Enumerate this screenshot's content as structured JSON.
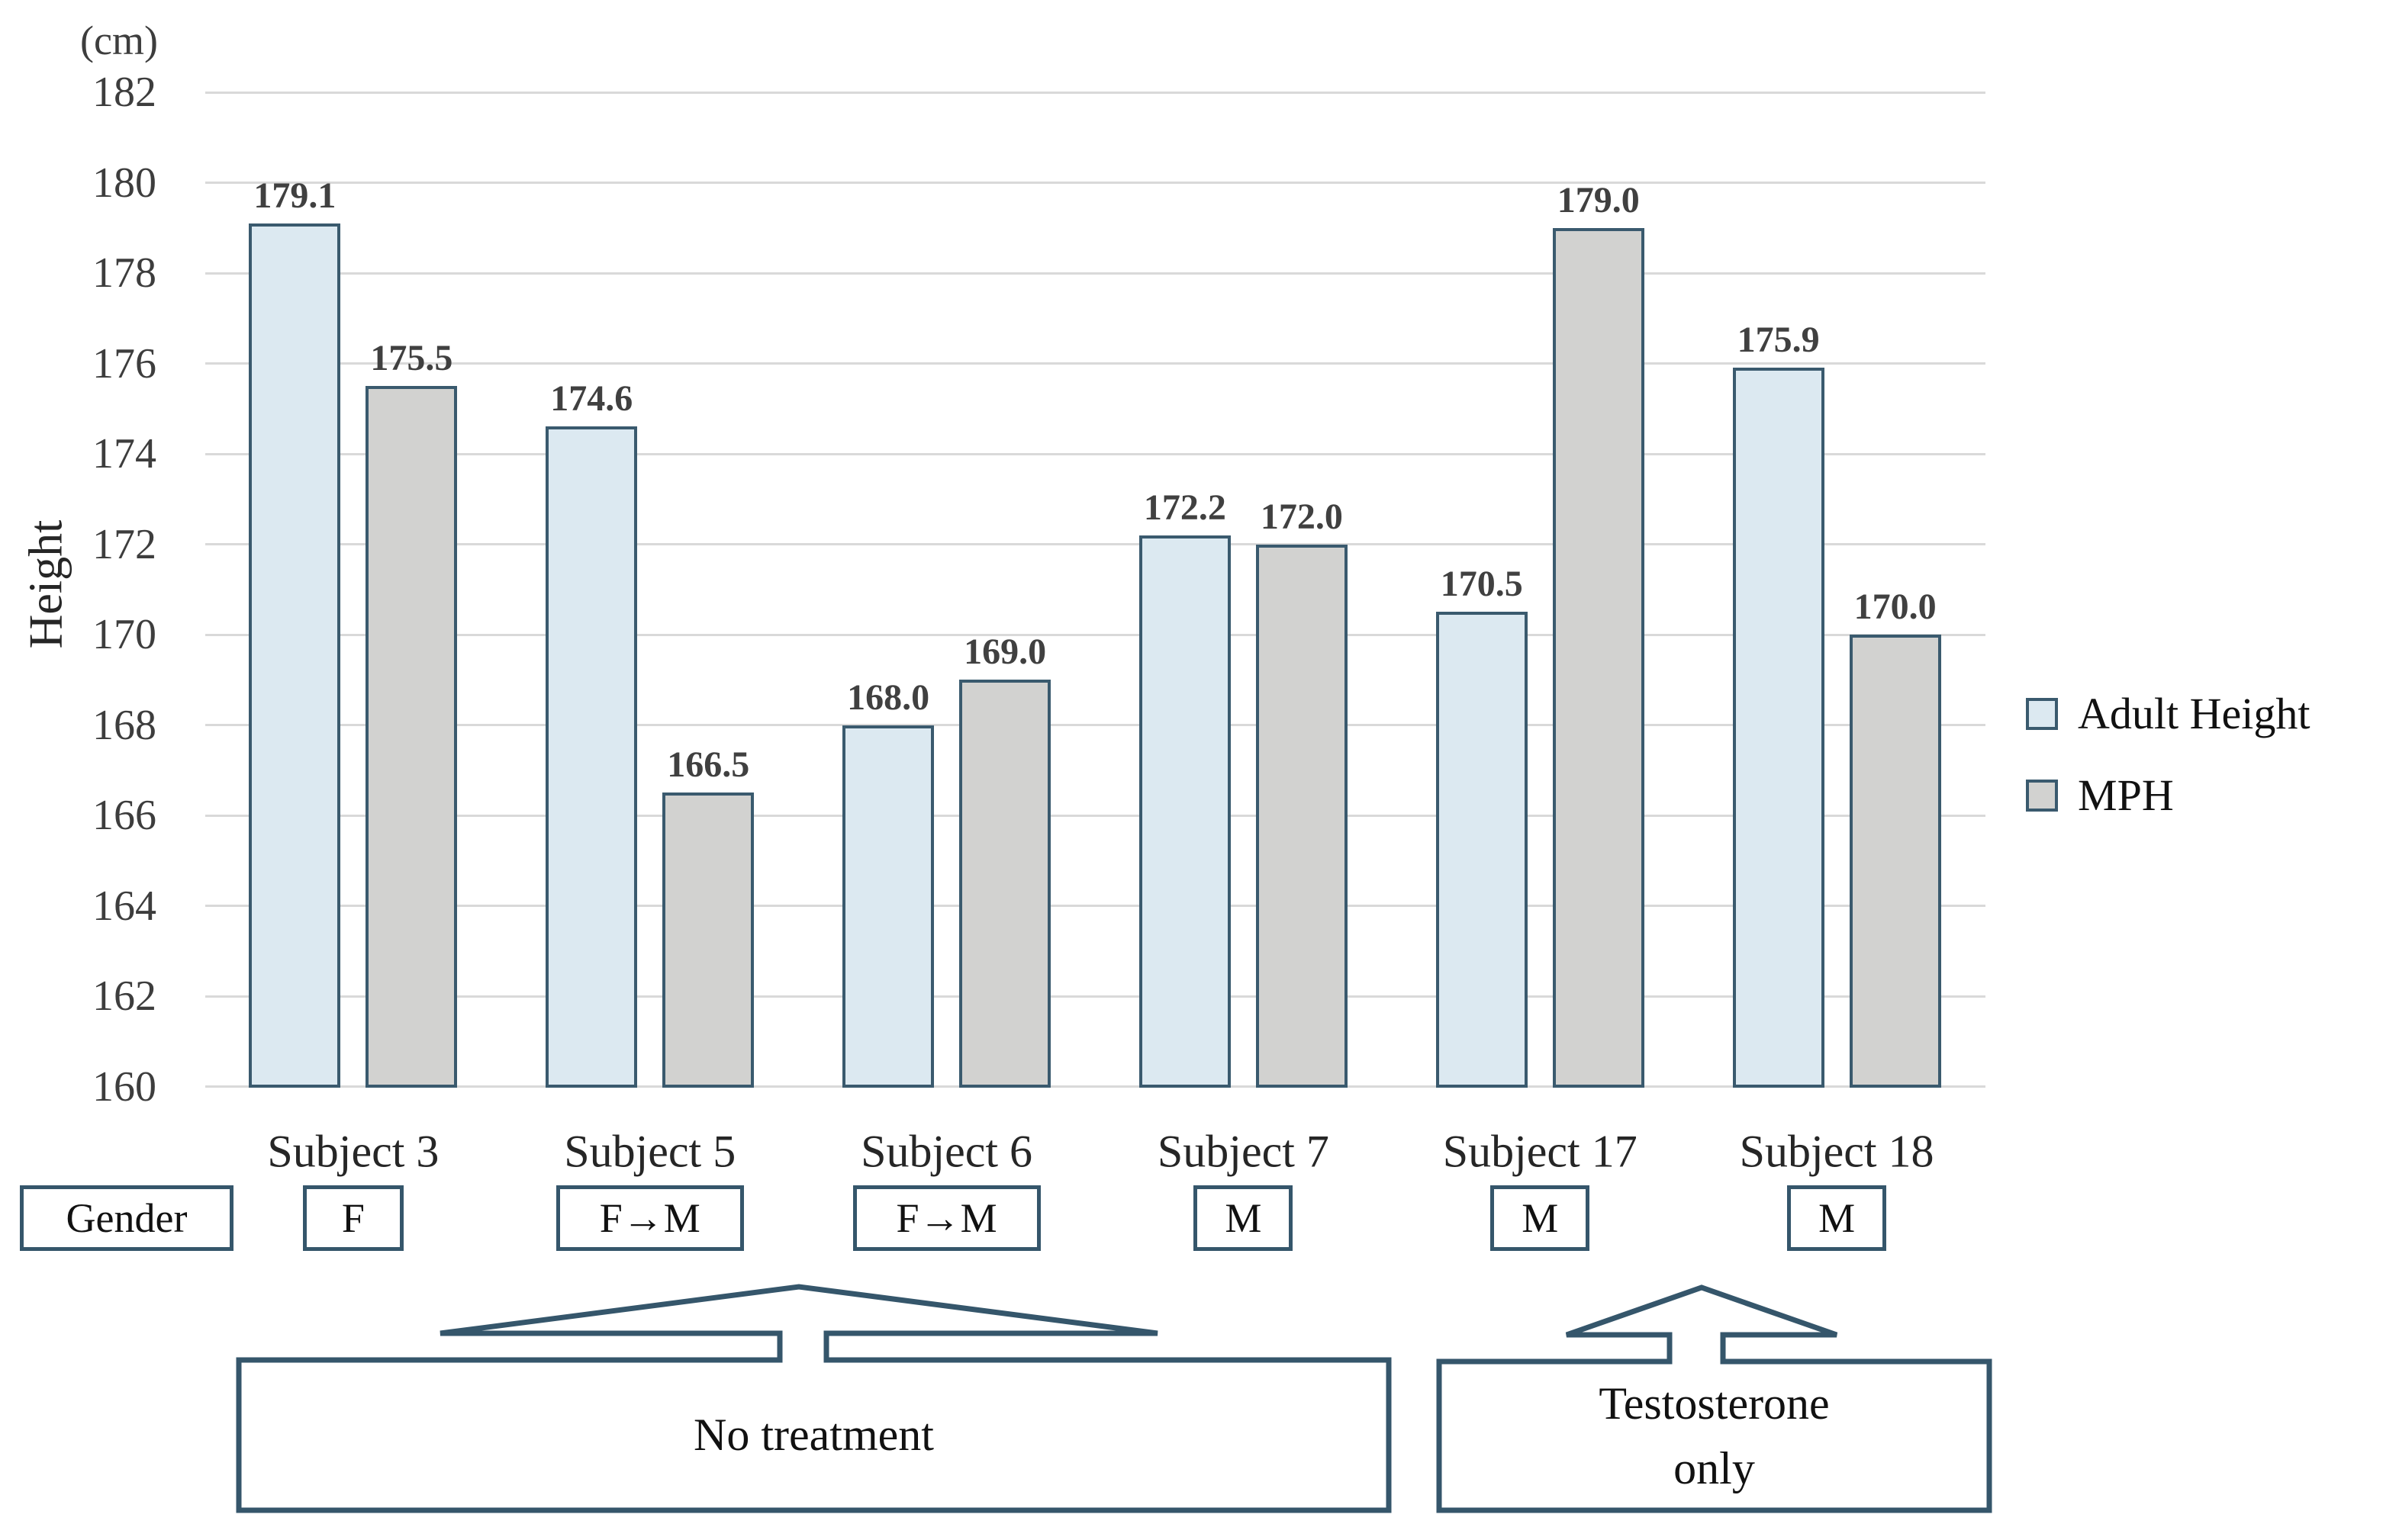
{
  "chart_data": {
    "type": "bar",
    "title": "",
    "unit_label": "(cm)",
    "ylabel": "Height",
    "ylim": [
      160,
      182
    ],
    "ytick_step": 2,
    "grid": true,
    "legend_position": "right",
    "categories": [
      "Subject 3",
      "Subject 5",
      "Subject 6",
      "Subject 7",
      "Subject 17",
      "Subject 18"
    ],
    "series": [
      {
        "name": "Adult Height",
        "color": "#dce9f1",
        "values": [
          179.1,
          174.6,
          168.0,
          172.2,
          170.5,
          175.9
        ]
      },
      {
        "name": "MPH",
        "color": "#d2d2d0",
        "values": [
          175.5,
          166.5,
          169.0,
          172.0,
          179.0,
          170.0
        ]
      }
    ]
  },
  "gender_row": {
    "header": "Gender",
    "values": [
      "F",
      "F→M",
      "F→M",
      "M",
      "M",
      "M"
    ]
  },
  "annotations": [
    {
      "label": "No treatment",
      "lines": [
        "No treatment"
      ],
      "subjects": [
        "Subject 3",
        "Subject 5",
        "Subject 6",
        "Subject 7"
      ]
    },
    {
      "label": "Testosterone only",
      "lines": [
        "Testosterone",
        "only"
      ],
      "subjects": [
        "Subject 17",
        "Subject 18"
      ]
    }
  ],
  "colors": {
    "adult_height_fill": "#dce9f1",
    "mph_fill": "#d2d2d0",
    "bar_border": "#3a5a6e",
    "gridline": "#d9d9d9",
    "callout_line": "#35566b",
    "label_text": "#404040"
  }
}
